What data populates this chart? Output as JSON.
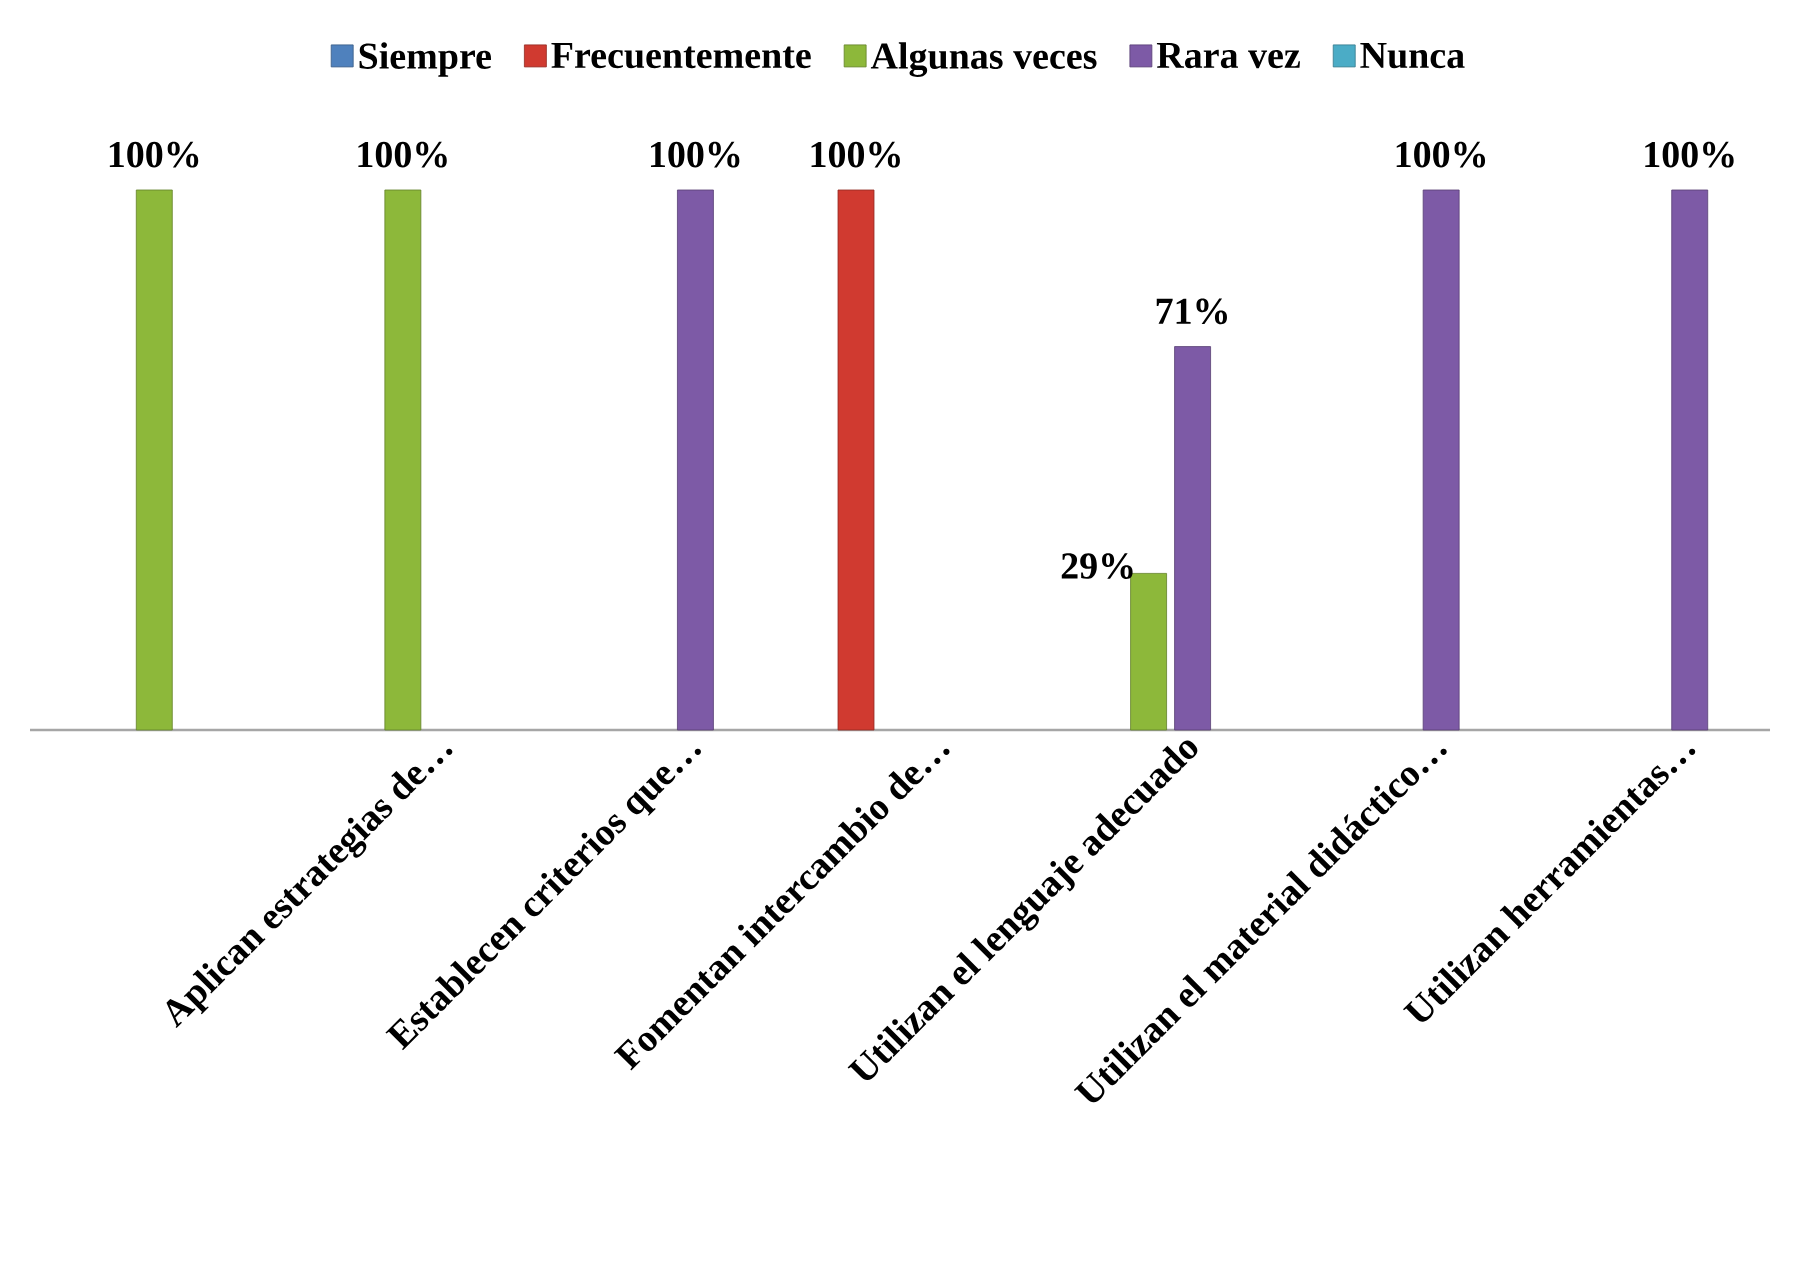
{
  "chart_data": {
    "type": "bar",
    "categories": [
      null,
      "Aplican  estrategias de…",
      "Establecen criterios que…",
      "Fomentan  intercambio de…",
      "Utilizan el lenguaje adecuado",
      "Utilizan el material didáctico…",
      "Utilizan herramientas…"
    ],
    "series": [
      {
        "name": "Siempre",
        "color": "#4f81bd",
        "values": [
          null,
          null,
          null,
          null,
          null,
          null,
          null
        ]
      },
      {
        "name": "Frecuentemente",
        "color": "#d03a30",
        "values": [
          null,
          null,
          null,
          100,
          null,
          null,
          null
        ],
        "value_labels": [
          null,
          null,
          null,
          "100%",
          null,
          null,
          null
        ]
      },
      {
        "name": "Algunas veces",
        "color": "#8db83a",
        "values": [
          100,
          100,
          null,
          null,
          29,
          null,
          null
        ],
        "value_labels": [
          "100%",
          "100%",
          null,
          null,
          "29%",
          null,
          null
        ]
      },
      {
        "name": "Rara vez",
        "color": "#7d5aa6",
        "values": [
          null,
          null,
          100,
          null,
          71,
          100,
          100
        ],
        "value_labels": [
          null,
          null,
          "100%",
          null,
          "71%",
          "100%",
          "100%"
        ]
      },
      {
        "name": "Nunca",
        "color": "#4bacc6",
        "values": [
          null,
          null,
          null,
          null,
          null,
          null,
          null
        ]
      }
    ],
    "ylim": [
      0,
      100
    ],
    "tick_labels": "x",
    "legend": "top"
  }
}
